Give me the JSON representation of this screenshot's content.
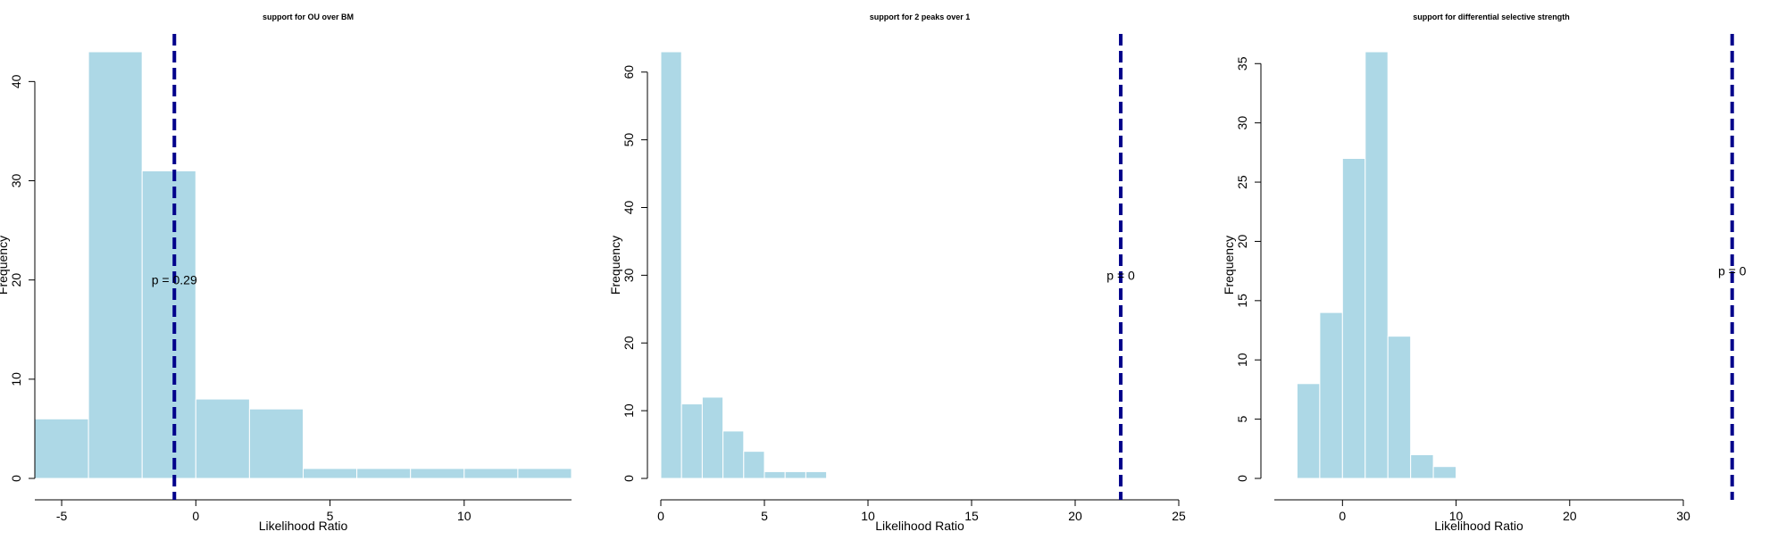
{
  "chart_data": [
    {
      "type": "bar",
      "title": "support for OU over BM",
      "xlabel": "Likelihood Ratio",
      "ylabel": "Frequency",
      "xlim": [
        -6,
        14
      ],
      "ylim": [
        0,
        43
      ],
      "xticks": [
        -5,
        0,
        5,
        10
      ],
      "yticks": [
        0,
        10,
        20,
        30,
        40
      ],
      "bins": [
        {
          "x0": -6,
          "x1": -4,
          "count": 6
        },
        {
          "x0": -4,
          "x1": -2,
          "count": 43
        },
        {
          "x0": -2,
          "x1": 0,
          "count": 31
        },
        {
          "x0": 0,
          "x1": 2,
          "count": 8
        },
        {
          "x0": 2,
          "x1": 4,
          "count": 7
        },
        {
          "x0": 4,
          "x1": 6,
          "count": 1
        },
        {
          "x0": 6,
          "x1": 8,
          "count": 1
        },
        {
          "x0": 8,
          "x1": 10,
          "count": 1
        },
        {
          "x0": 10,
          "x1": 12,
          "count": 1
        },
        {
          "x0": 12,
          "x1": 14,
          "count": 1
        }
      ],
      "observed_line": -0.8,
      "annotation": {
        "text": "p =  0.29",
        "x": -0.8,
        "y": 20
      },
      "bar_color": "#add8e6",
      "line_color": "#00008b"
    },
    {
      "type": "bar",
      "title": "support for 2 peaks over 1",
      "xlabel": "Likelihood Ratio",
      "ylabel": "Frequency",
      "xlim": [
        0,
        25
      ],
      "ylim": [
        0,
        63
      ],
      "xticks": [
        0,
        5,
        10,
        15,
        20,
        25
      ],
      "yticks": [
        0,
        10,
        20,
        30,
        40,
        50,
        60
      ],
      "bins": [
        {
          "x0": 0,
          "x1": 1,
          "count": 63
        },
        {
          "x0": 1,
          "x1": 2,
          "count": 11
        },
        {
          "x0": 2,
          "x1": 3,
          "count": 12
        },
        {
          "x0": 3,
          "x1": 4,
          "count": 7
        },
        {
          "x0": 4,
          "x1": 5,
          "count": 4
        },
        {
          "x0": 5,
          "x1": 6,
          "count": 1
        },
        {
          "x0": 6,
          "x1": 7,
          "count": 1
        },
        {
          "x0": 7,
          "x1": 8,
          "count": 1
        }
      ],
      "observed_line": 22.2,
      "annotation": {
        "text": "p =  0",
        "x": 22.2,
        "y": 30
      },
      "bar_color": "#add8e6",
      "line_color": "#00008b"
    },
    {
      "type": "bar",
      "title": "support for differential selective strength",
      "xlabel": "Likelihood Ratio",
      "ylabel": "Frequency",
      "xlim": [
        -6,
        30
      ],
      "ylim": [
        0,
        36
      ],
      "xticks": [
        0,
        10,
        20,
        30
      ],
      "yticks": [
        0,
        5,
        10,
        15,
        20,
        25,
        30,
        35
      ],
      "bins": [
        {
          "x0": -4,
          "x1": -2,
          "count": 8
        },
        {
          "x0": -2,
          "x1": 0,
          "count": 14
        },
        {
          "x0": 0,
          "x1": 2,
          "count": 27
        },
        {
          "x0": 2,
          "x1": 4,
          "count": 36
        },
        {
          "x0": 4,
          "x1": 6,
          "count": 12
        },
        {
          "x0": 6,
          "x1": 8,
          "count": 2
        },
        {
          "x0": 8,
          "x1": 10,
          "count": 1
        }
      ],
      "observed_line": 34.3,
      "annotation": {
        "text": "p =  0",
        "x": 34.3,
        "y": 17.5
      },
      "bar_color": "#add8e6",
      "line_color": "#00008b"
    }
  ]
}
